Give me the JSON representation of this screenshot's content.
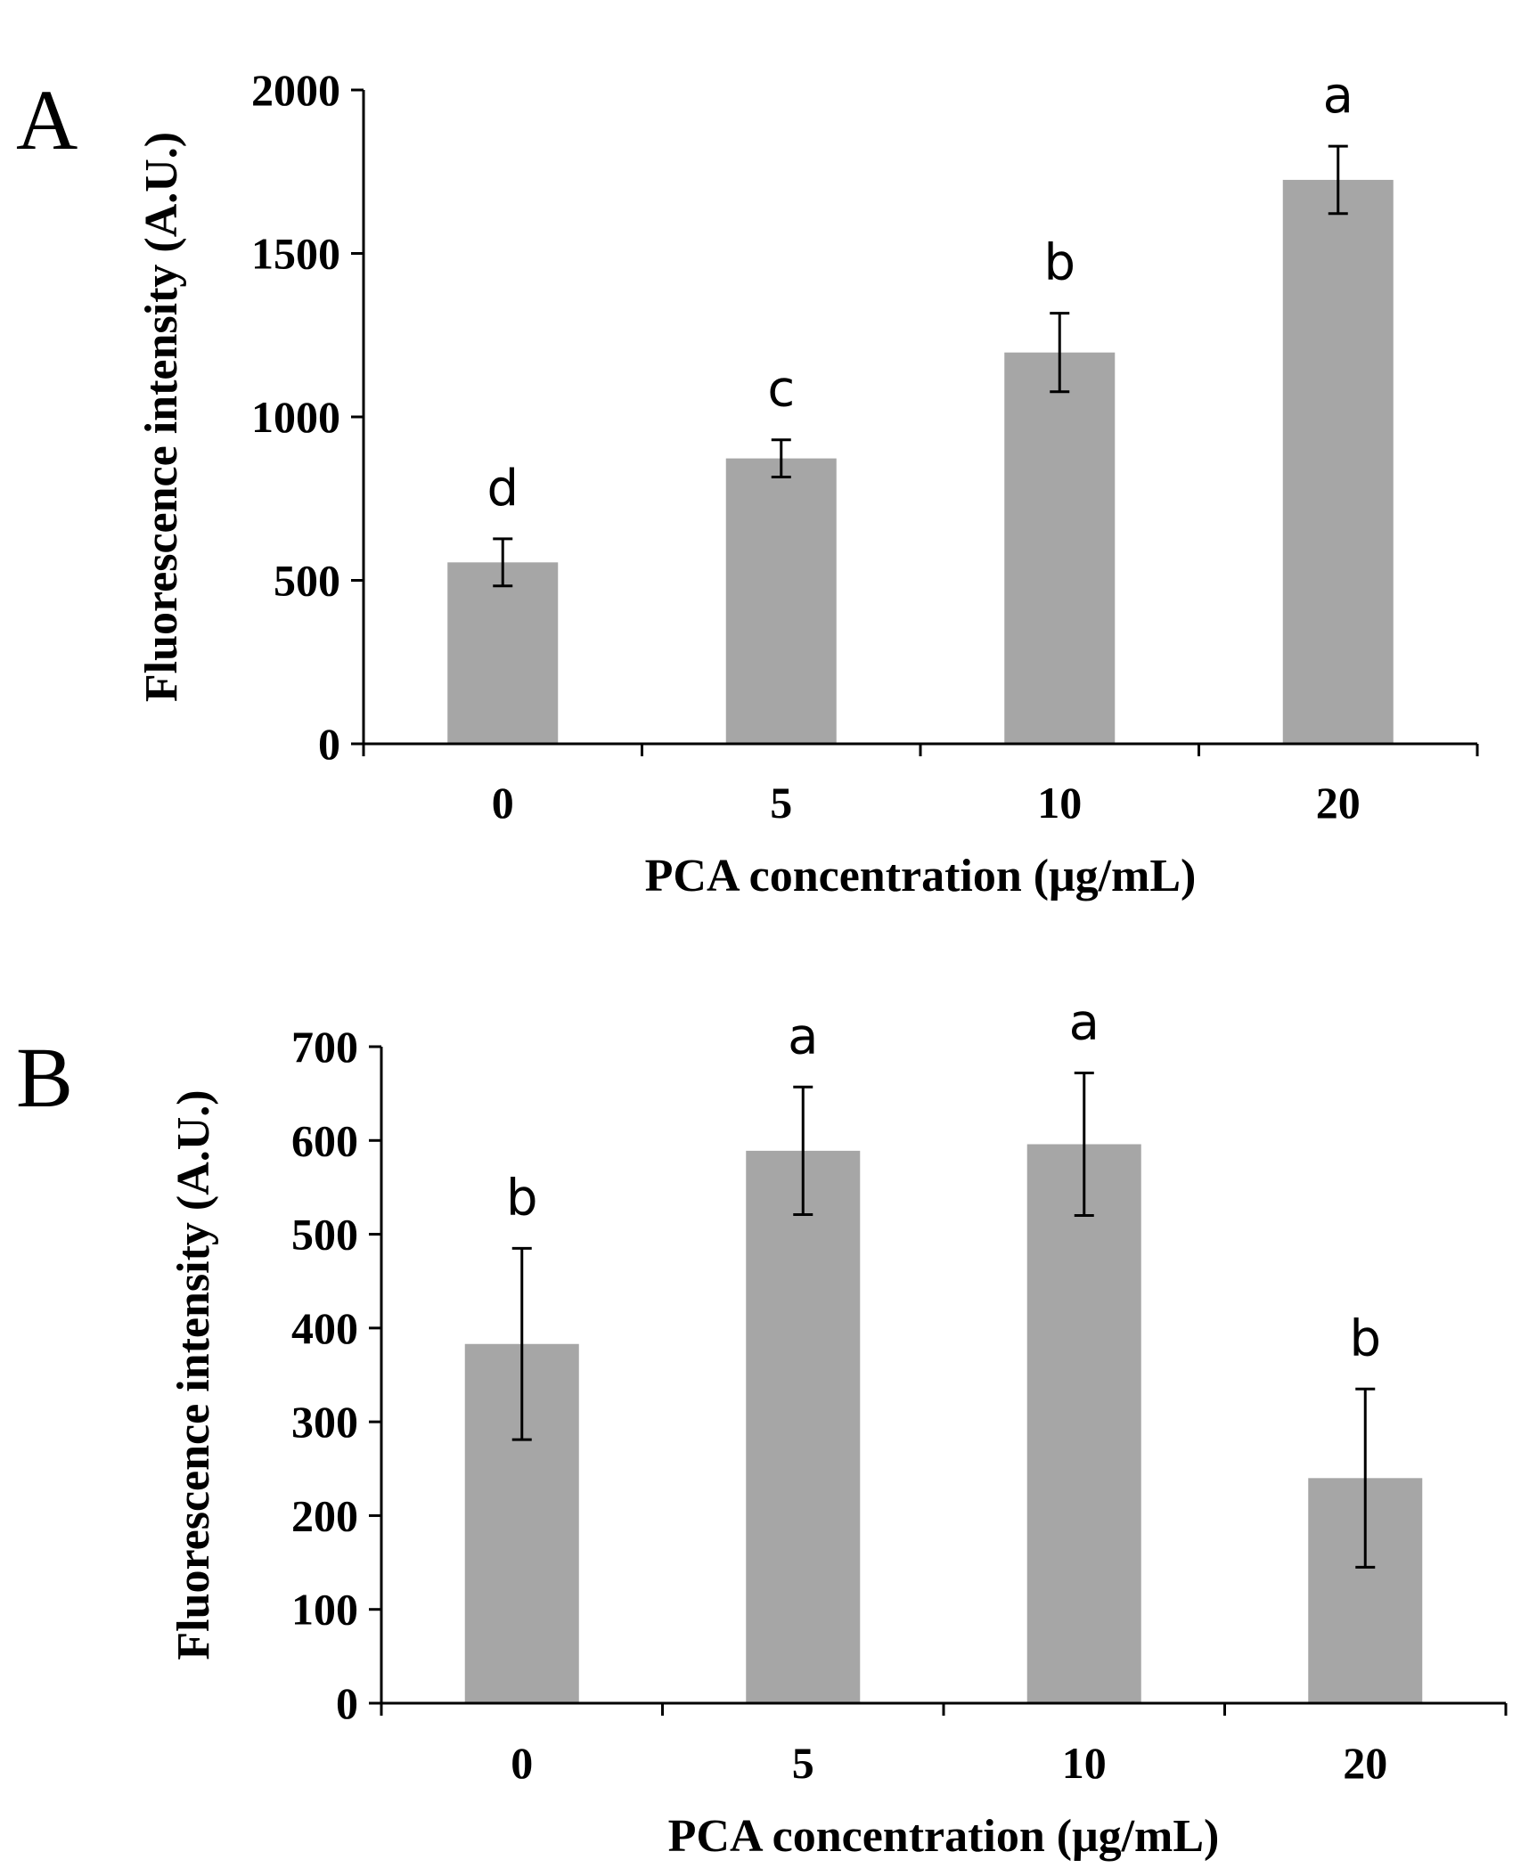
{
  "chart_data": [
    {
      "type": "bar",
      "panel": "A",
      "categories": [
        "0",
        "5",
        "10",
        "20"
      ],
      "values": [
        555,
        873,
        1197,
        1725
      ],
      "errors": [
        72,
        57,
        120,
        103
      ],
      "significance": [
        "d",
        "c",
        "b",
        "a"
      ],
      "xlabel": "PCA concentration  (μg/mL)",
      "ylabel": "Fluorescence intensity (A.U.)",
      "ylim": [
        0,
        2000
      ],
      "yticks": [
        0,
        500,
        1000,
        1500,
        2000
      ],
      "grid": false,
      "bar_color": "#a6a6a6"
    },
    {
      "type": "bar",
      "panel": "B",
      "categories": [
        "0",
        "5",
        "10",
        "20"
      ],
      "values": [
        383,
        589,
        596,
        240
      ],
      "errors": [
        102,
        68,
        76,
        95
      ],
      "significance": [
        "b",
        "a",
        "a",
        "b"
      ],
      "xlabel": "PCA concentration  (μg/mL)",
      "ylabel": "Fluorescence intensity (A.U.)",
      "ylim": [
        0,
        700
      ],
      "yticks": [
        0,
        100,
        200,
        300,
        400,
        500,
        600,
        700
      ],
      "grid": false,
      "bar_color": "#a6a6a6"
    }
  ]
}
